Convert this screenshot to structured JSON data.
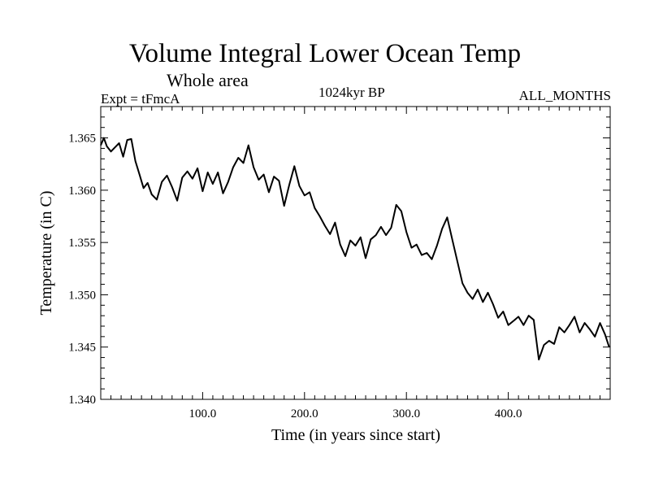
{
  "header": {
    "title": "Volume Integral Lower Ocean Temp",
    "subtitle": "Whole area",
    "expt": "Expt = tFmcA",
    "period": "1024kyr BP",
    "months": "ALL_MONTHS"
  },
  "chart_data": {
    "type": "line",
    "title": "Volume Integral Lower Ocean Temp",
    "xlabel": "Time (in years since start)",
    "ylabel": "Temperature (in C)",
    "xlim": [
      0,
      500
    ],
    "ylim": [
      1.34,
      1.368
    ],
    "x_ticks": [
      100,
      200,
      300,
      400
    ],
    "x_tick_labels": [
      "100.0",
      "200.0",
      "300.0",
      "400.0"
    ],
    "y_ticks": [
      1.34,
      1.345,
      1.35,
      1.355,
      1.36,
      1.365
    ],
    "y_tick_labels": [
      "1.340",
      "1.345",
      "1.350",
      "1.355",
      "1.360",
      "1.365"
    ],
    "grid": false,
    "series": [
      {
        "name": "Lower Ocean Temp",
        "color": "#000000",
        "x": [
          0,
          3,
          6,
          10,
          14,
          18,
          22,
          26,
          30,
          34,
          38,
          42,
          46,
          50,
          55,
          60,
          65,
          70,
          75,
          80,
          85,
          90,
          95,
          100,
          105,
          110,
          115,
          120,
          125,
          130,
          135,
          140,
          145,
          150,
          155,
          160,
          165,
          170,
          175,
          180,
          185,
          190,
          195,
          200,
          205,
          210,
          215,
          220,
          225,
          230,
          235,
          240,
          245,
          250,
          255,
          260,
          265,
          270,
          275,
          280,
          285,
          290,
          295,
          300,
          305,
          310,
          315,
          320,
          325,
          330,
          335,
          340,
          345,
          350,
          355,
          360,
          365,
          370,
          375,
          380,
          385,
          390,
          395,
          400,
          405,
          410,
          415,
          420,
          425,
          430,
          435,
          440,
          445,
          450,
          455,
          460,
          465,
          470,
          475,
          480,
          485,
          490,
          495,
          499
        ],
        "y": [
          1.3643,
          1.365,
          1.3642,
          1.3637,
          1.3641,
          1.3645,
          1.3632,
          1.3648,
          1.3649,
          1.3628,
          1.3615,
          1.3602,
          1.3607,
          1.3596,
          1.3591,
          1.3608,
          1.3614,
          1.3603,
          1.359,
          1.3612,
          1.3618,
          1.3611,
          1.3621,
          1.3599,
          1.3617,
          1.3606,
          1.3617,
          1.3597,
          1.3608,
          1.3622,
          1.3631,
          1.3626,
          1.3643,
          1.3622,
          1.361,
          1.3615,
          1.3598,
          1.3613,
          1.3609,
          1.3585,
          1.3605,
          1.3623,
          1.3604,
          1.3595,
          1.3598,
          1.3583,
          1.3575,
          1.3566,
          1.3558,
          1.3569,
          1.3548,
          1.3537,
          1.3552,
          1.3547,
          1.3555,
          1.3535,
          1.3553,
          1.3557,
          1.3565,
          1.3557,
          1.3564,
          1.3586,
          1.358,
          1.356,
          1.3545,
          1.3548,
          1.3538,
          1.354,
          1.3534,
          1.3547,
          1.3563,
          1.3574,
          1.3553,
          1.3532,
          1.3511,
          1.3502,
          1.3496,
          1.3505,
          1.3493,
          1.3502,
          1.3491,
          1.3478,
          1.3484,
          1.3471,
          1.3475,
          1.3479,
          1.3471,
          1.348,
          1.3476,
          1.3438,
          1.3452,
          1.3456,
          1.3453,
          1.3469,
          1.3464,
          1.3471,
          1.3479,
          1.3464,
          1.3473,
          1.3467,
          1.346,
          1.3473,
          1.3462,
          1.345
        ]
      }
    ]
  }
}
